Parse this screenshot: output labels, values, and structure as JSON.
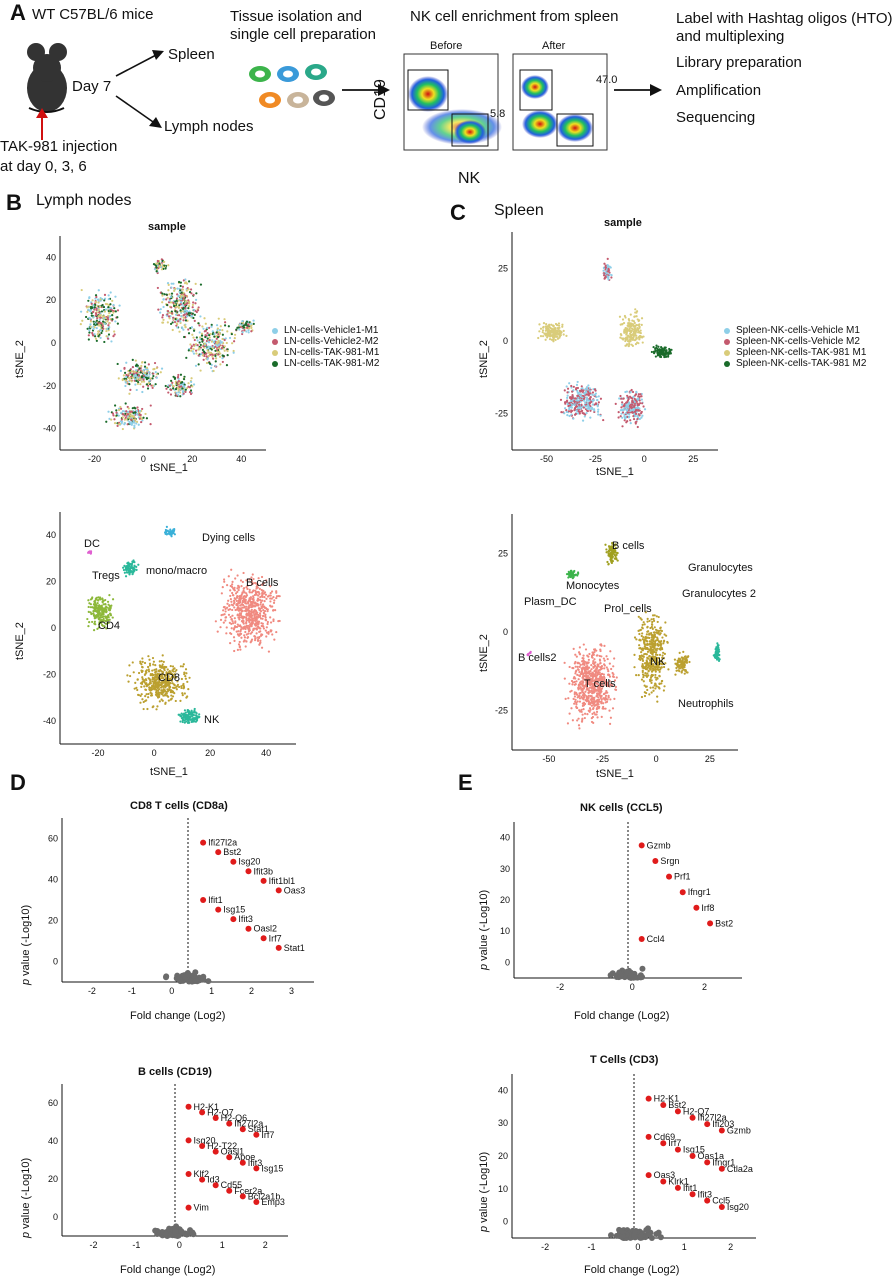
{
  "panelA": {
    "letter": "A",
    "mouse_label": "WT C57BL/6 mice",
    "day_label": "Day 7",
    "spleen": "Spleen",
    "lymph_nodes": "Lymph nodes",
    "injection_line1": "TAK-981 injection",
    "injection_line2": "at day 0, 3, 6",
    "tissue_line1": "Tissue isolation and",
    "tissue_line2": "single cell preparation",
    "enrich_title": "NK cell enrichment from spleen",
    "before": "Before",
    "after": "After",
    "before_pct": "5.8",
    "after_pct": "47.0",
    "ylabel": "CD19",
    "xlabel": "NK",
    "steps": [
      "Label with Hashtag oligos (HTO)",
      "and multiplexing",
      "Library preparation",
      "Amplification",
      "Sequencing"
    ],
    "colors": {
      "mouse": "#333333",
      "arrow_red": "#d01010",
      "cells": [
        "#3cb44b",
        "#3a9ad9",
        "#2aa889",
        "#f08a24",
        "#c8b49a",
        "#555555"
      ]
    }
  },
  "panelB": {
    "letter": "B",
    "title": "Lymph nodes",
    "plot_title": "sample",
    "xlabel": "tSNE_1",
    "ylabel": "tSNE_2",
    "legend": [
      {
        "label": "LN-cells-Vehicle1-M1",
        "color": "#8ecfe8"
      },
      {
        "label": "LN-cells-Vehicle2-M2",
        "color": "#c45a6e"
      },
      {
        "label": "LN-cells-TAK-981-M1",
        "color": "#d9cc7a"
      },
      {
        "label": "LN-cells-TAK-981-M2",
        "color": "#1a6b2a"
      }
    ],
    "xticks": [
      "-20",
      "0",
      "20",
      "40"
    ],
    "yticks_top": [
      "40",
      "20",
      "0",
      "-20",
      "-40"
    ],
    "yticks_bottom": [
      "40",
      "20",
      "0",
      "-20",
      "-40"
    ],
    "clusters": [
      "DC",
      "Dying cells",
      "Tregs",
      "mono/macro",
      "B cells",
      "CD4",
      "CD8",
      "NK"
    ],
    "cluster_colors": {
      "pink": "#f08a80",
      "olive": "#bba030",
      "green": "#8db83a",
      "teal": "#2ab89a",
      "cyan": "#3ab0d8",
      "magenta": "#e060d0"
    }
  },
  "panelC": {
    "letter": "C",
    "title": "Spleen",
    "plot_title": "sample",
    "xlabel": "tSNE_1",
    "ylabel": "tSNE_2",
    "legend": [
      {
        "label": "Spleen-NK-cells-Vehicle M1",
        "color": "#8ecfe8"
      },
      {
        "label": "Spleen-NK-cells-Vehicle M2",
        "color": "#c45a6e"
      },
      {
        "label": "Spleen-NK-cells-TAK-981 M1",
        "color": "#d9cc7a"
      },
      {
        "label": "Spleen-NK-cells-TAK-981 M2",
        "color": "#1a6b2a"
      }
    ],
    "xticks": [
      "-50",
      "-25",
      "0",
      "25"
    ],
    "yticks_top": [
      "25",
      "0",
      "-25"
    ],
    "yticks_bottom": [
      "25",
      "0",
      "-25"
    ],
    "clusters": [
      "B cells",
      "Granulocytes",
      "Monocytes",
      "Granulocytes 2",
      "Plasm_DC",
      "Prol_cells",
      "B cells2",
      "NK",
      "T cells",
      "Neutrophils"
    ]
  },
  "panelD": {
    "letter": "D",
    "xlabel": "Fold change (Log2)",
    "ylabel_italic": "p",
    "ylabel_rest": "value (-Log10)",
    "top": {
      "title": "CD8 T cells (CD8a)",
      "xticks": [
        "-2",
        "-1",
        "0",
        "1",
        "2",
        "3"
      ],
      "yticks": [
        "0",
        "20",
        "40",
        "60"
      ],
      "labels": [
        "Ifi27l2a",
        "Bst2",
        "Isg20",
        "Ifit3b",
        "Ifit1bl1",
        "Oas3",
        "Ifit1",
        "Isg15",
        "Ifit3",
        "Oasl2",
        "Irf7",
        "Stat1"
      ]
    },
    "bottom": {
      "title": "B cells (CD19)",
      "xticks": [
        "-2",
        "-1",
        "0",
        "1",
        "2"
      ],
      "yticks": [
        "0",
        "20",
        "40",
        "60"
      ],
      "labels": [
        "H2-K1",
        "H2-Q7",
        "H2-Q6",
        "Ifi27l2a",
        "Stat1",
        "Irf7",
        "Isg20",
        "H2-T22",
        "Oasl1",
        "Apoe",
        "Ifit3",
        "Isg15",
        "Klf2",
        "Id3",
        "Cd55",
        "Fcer2a",
        "Bcl2a1b",
        "Emp3",
        "Vim"
      ]
    }
  },
  "panelE": {
    "letter": "E",
    "xlabel": "Fold change (Log2)",
    "ylabel_italic": "p",
    "ylabel_rest": "value (-Log10)",
    "top": {
      "title": "NK cells (CCL5)",
      "xticks": [
        "-2",
        "0",
        "2"
      ],
      "yticks": [
        "0",
        "10",
        "20",
        "30",
        "40"
      ],
      "labels": [
        "Gzmb",
        "Srgn",
        "Prf1",
        "Ifngr1",
        "Irf8",
        "Bst2",
        "Ccl4"
      ]
    },
    "bottom": {
      "title": "T Cells (CD3)",
      "xticks": [
        "-2",
        "-1",
        "0",
        "1",
        "2"
      ],
      "yticks": [
        "0",
        "10",
        "20",
        "30",
        "40"
      ],
      "labels": [
        "H2-K1",
        "Bst2",
        "H2-Q7",
        "Ifi27l2a",
        "Ifi203",
        "Gzmb",
        "Cd69",
        "Irf7",
        "Isg15",
        "Oas1a",
        "Ifngr1",
        "Ctla2a",
        "Oas3",
        "Klrk1",
        "Ifit1",
        "Ifit3",
        "Ccl5",
        "Isg20"
      ]
    }
  },
  "colors": {
    "sig_red": "#e01b1b",
    "ns_gray": "#6b6b6b",
    "down_blue": "#1f3fbf"
  }
}
